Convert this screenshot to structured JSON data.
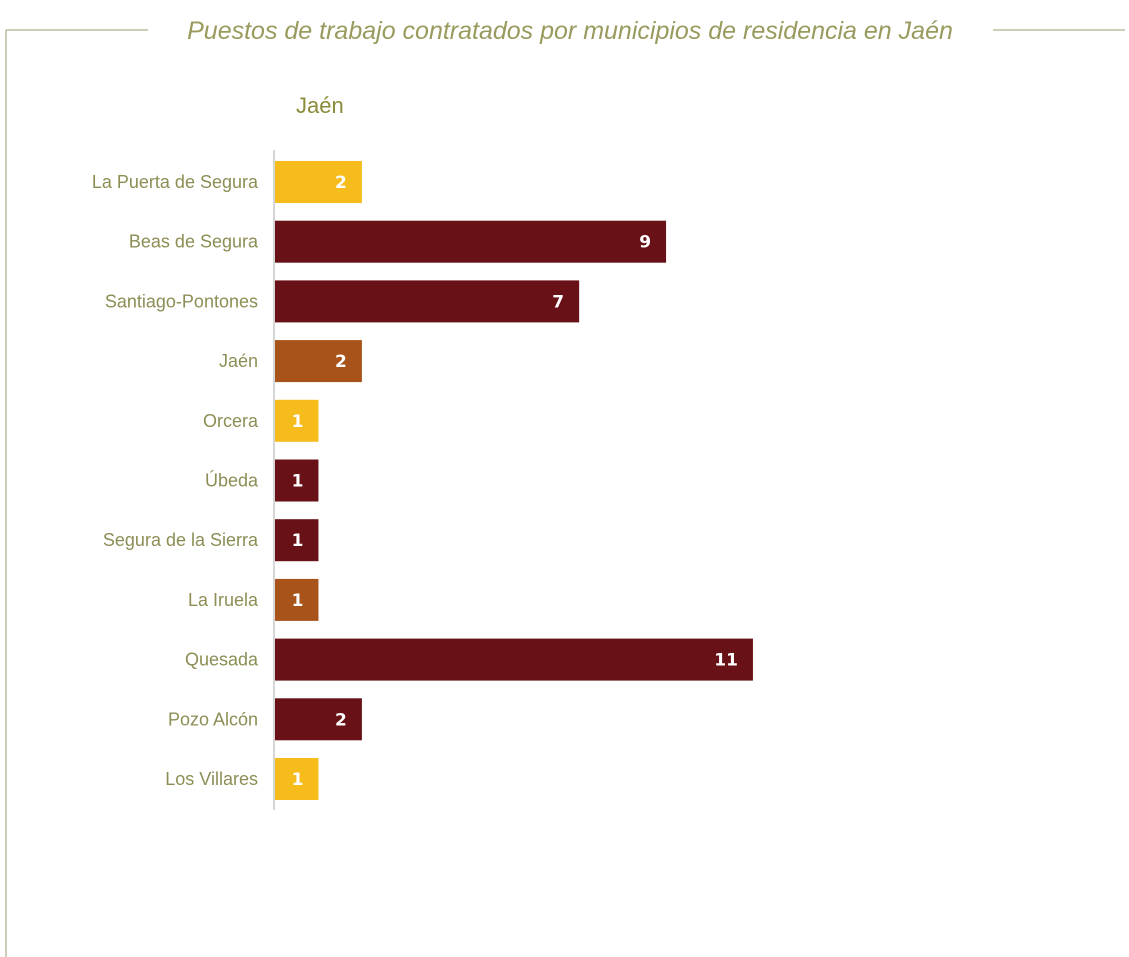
{
  "chart_data": {
    "type": "bar",
    "orientation": "horizontal",
    "title": "Puestos de trabajo contratados por municipios de residencia en Jaén",
    "subtitle": "Jaén",
    "categories": [
      "La Puerta de Segura",
      "Beas de Segura",
      "Santiago-Pontones",
      "Jaén",
      "Orcera",
      "Úbeda",
      "Segura de la Sierra",
      "La Iruela",
      "Quesada",
      "Pozo Alcón",
      "Los Villares"
    ],
    "values": [
      2,
      9,
      7,
      2,
      1,
      1,
      1,
      1,
      11,
      2,
      1
    ],
    "bar_colors": [
      "#f5bc1c",
      "#681217",
      "#681217",
      "#a8531a",
      "#f5bc1c",
      "#681217",
      "#681217",
      "#a8531a",
      "#681217",
      "#681217",
      "#f5bc1c"
    ],
    "data_labels": true,
    "grid": false,
    "legend": "none"
  }
}
